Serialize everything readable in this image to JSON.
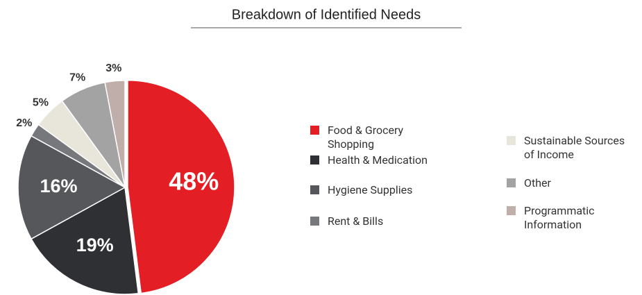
{
  "chart_data": {
    "type": "pie",
    "title": "Breakdown of Identified Needs",
    "categories": [
      "Food & Grocery Shopping",
      "Health & Medication",
      "Hygiene Supplies",
      "Rent & Bills",
      "Sustainable Sources of Income",
      "Other",
      "Programmatic Information"
    ],
    "values": [
      48,
      19,
      16,
      2,
      5,
      7,
      3
    ],
    "value_labels": [
      "48%",
      "19%",
      "16%",
      "2%",
      "5%",
      "7%",
      "3%"
    ],
    "colors": [
      "#e31e24",
      "#2f3033",
      "#55575a",
      "#76787b",
      "#e8e6da",
      "#a3a3a3",
      "#bfaea9"
    ]
  }
}
